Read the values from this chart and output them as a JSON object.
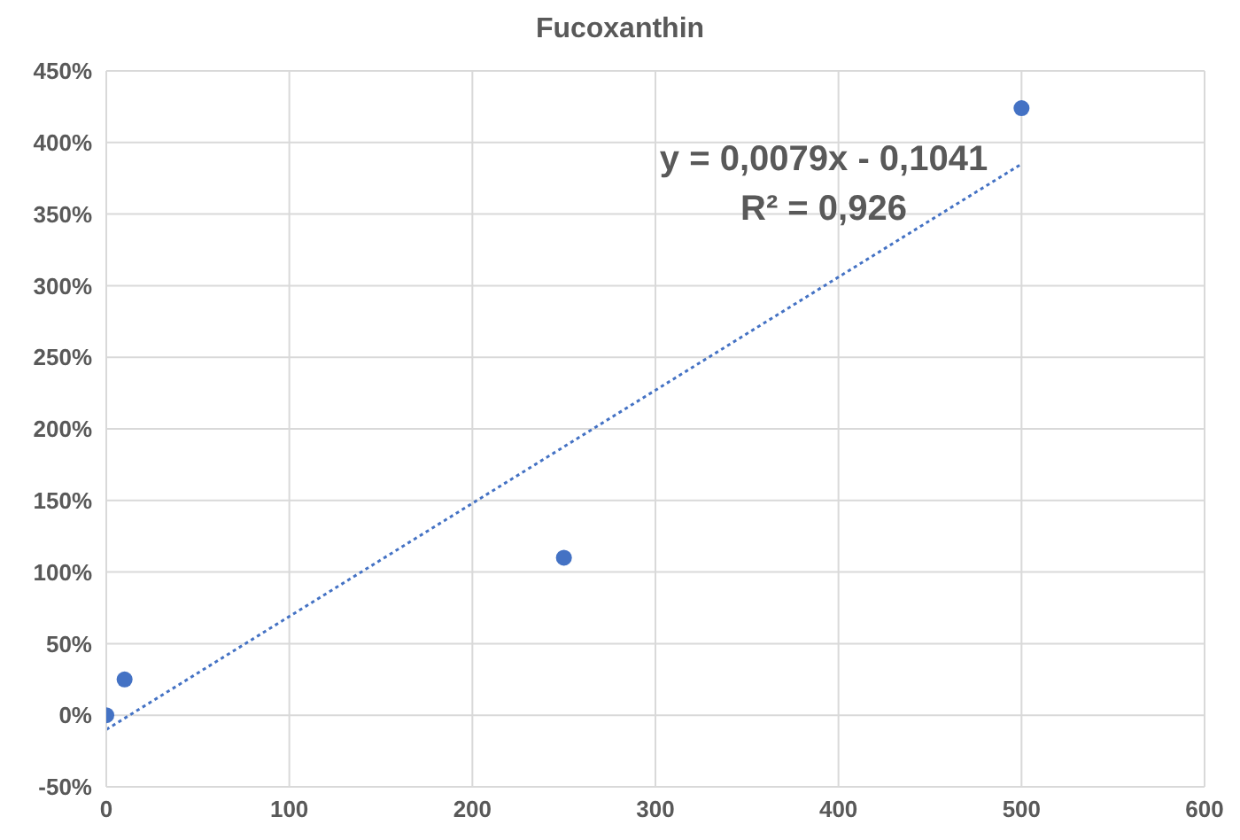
{
  "chart_data": {
    "type": "scatter",
    "title": "Fucoxanthin",
    "series": [
      {
        "color": "#4472c4",
        "x": [
          0,
          10,
          250,
          500
        ],
        "values": [
          0,
          25,
          110,
          424
        ],
        "marker": "circle"
      },
      {
        "type": "line",
        "color": "#4472c4",
        "x": [
          0,
          500
        ],
        "values": [
          -10,
          385
        ],
        "line_style": "dotted",
        "marker": "none"
      }
    ],
    "xlim": [
      0,
      600
    ],
    "xticks": [
      0,
      100,
      200,
      300,
      400,
      500,
      600
    ],
    "ylim": [
      -50,
      450
    ],
    "yticks": [
      {
        "value": -50,
        "label": "-50%"
      },
      {
        "value": 0,
        "label": "0%"
      },
      {
        "value": 50,
        "label": "50%"
      },
      {
        "value": 100,
        "label": "100%"
      },
      {
        "value": 150,
        "label": "150%"
      },
      {
        "value": 200,
        "label": "200%"
      },
      {
        "value": 250,
        "label": "250%"
      },
      {
        "value": 300,
        "label": "300%"
      },
      {
        "value": 350,
        "label": "350%"
      },
      {
        "value": 400,
        "label": "400%"
      },
      {
        "value": 450,
        "label": "450%"
      }
    ],
    "grid": true,
    "legend": false,
    "annotations": [
      "y = 0,0079x - 0,1041",
      "R² = 0,926"
    ]
  }
}
